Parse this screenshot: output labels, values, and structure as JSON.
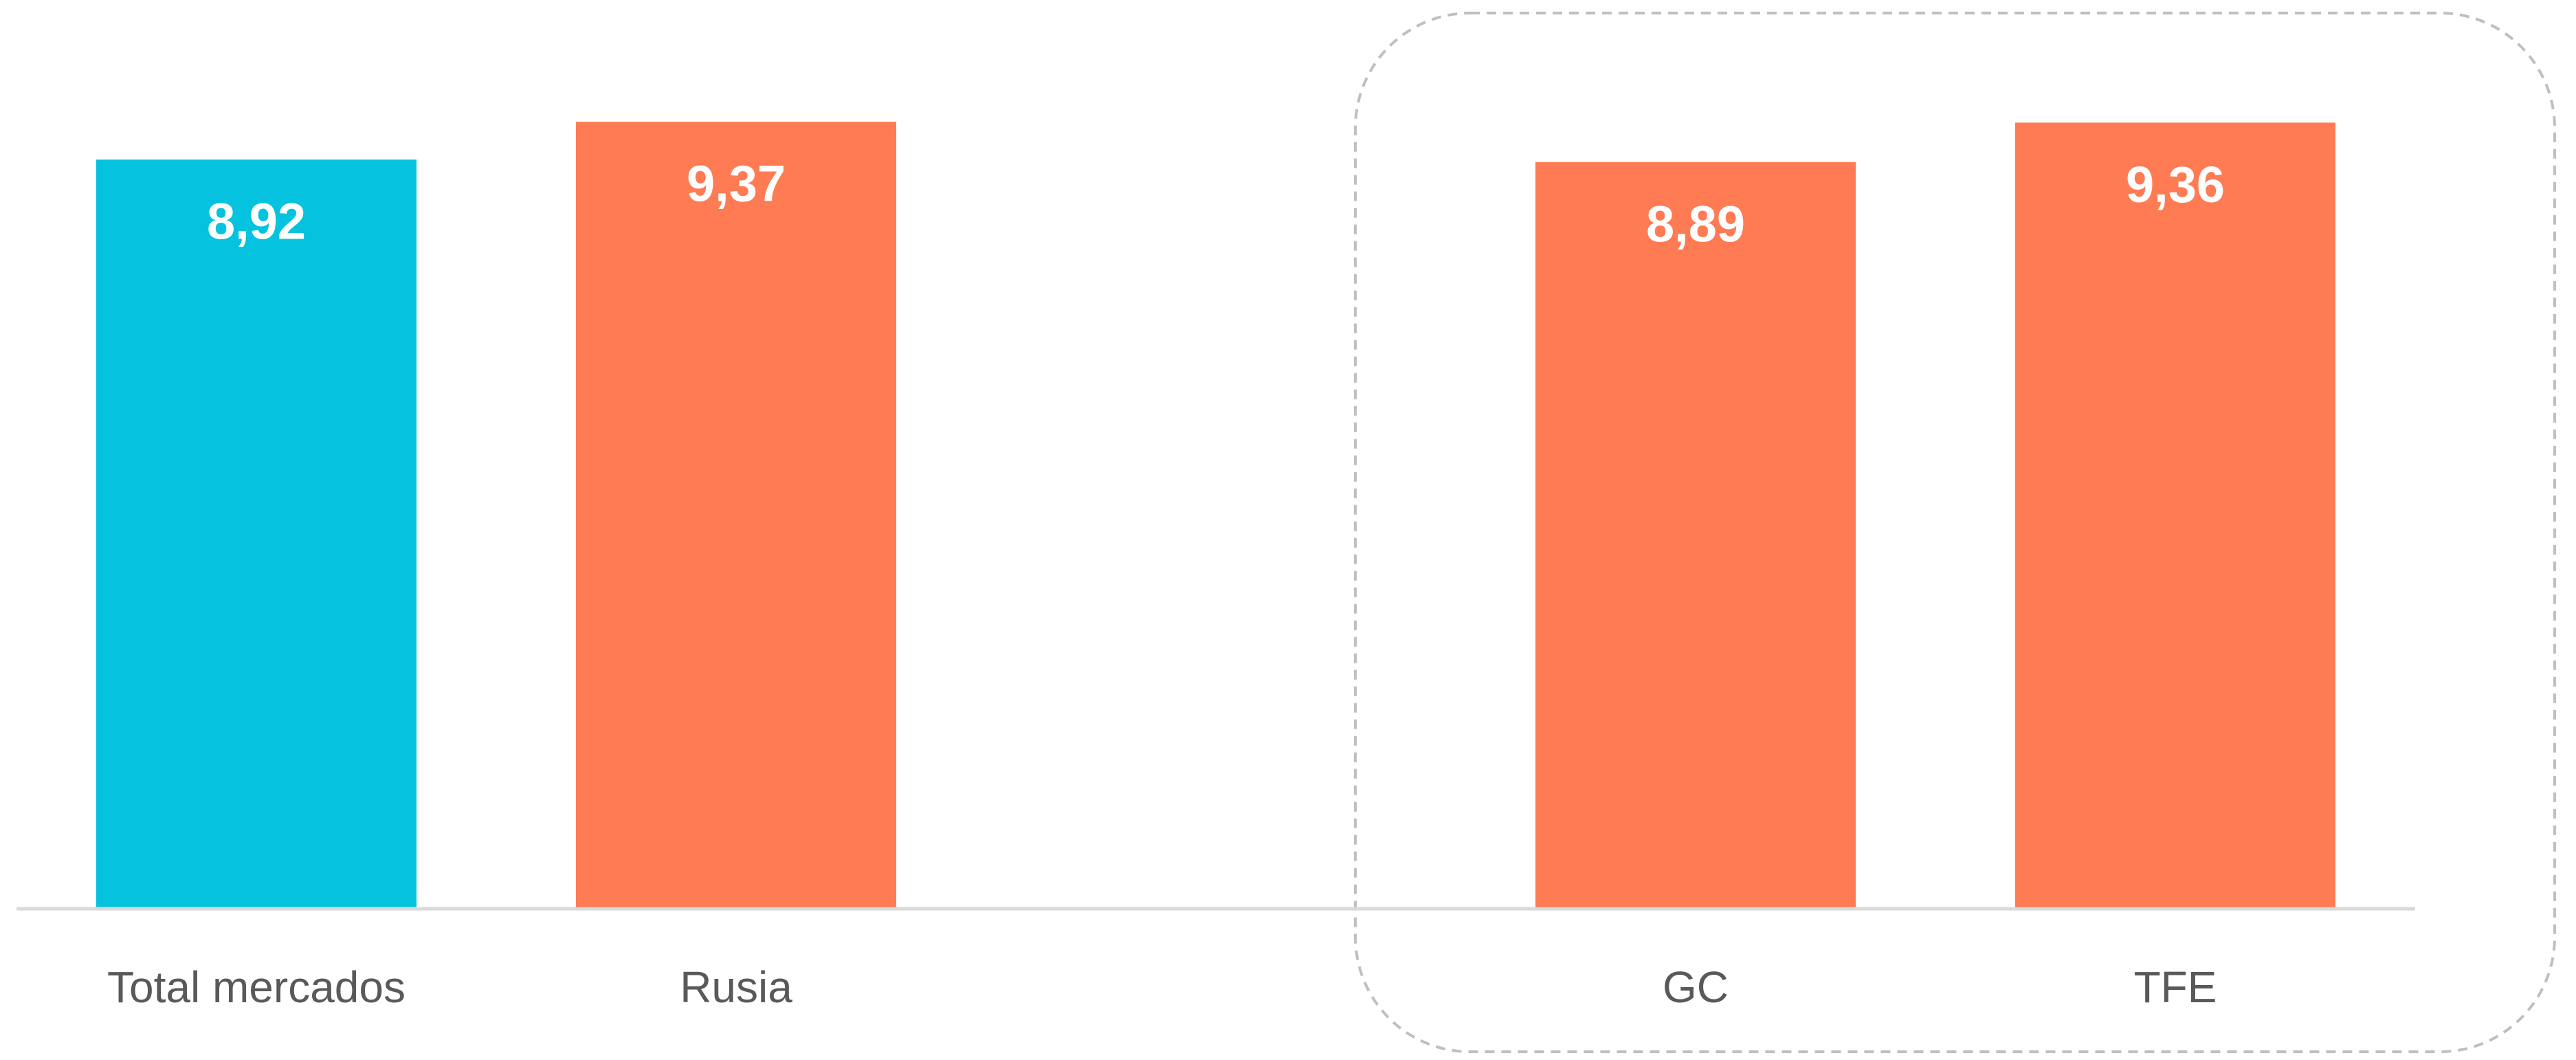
{
  "chart_data": {
    "type": "bar",
    "categories": [
      "Total mercados",
      "Rusia",
      null,
      "GC",
      "TFE"
    ],
    "values": [
      8.92,
      9.37,
      null,
      8.89,
      9.36
    ],
    "value_labels": [
      "8,92",
      "9,37",
      null,
      "8,89",
      "9,36"
    ],
    "colors": [
      "#05C3DE",
      "#FF7B53",
      null,
      "#FF7B53",
      "#FF7B53"
    ],
    "ylim": [
      0,
      10.82
    ]
  }
}
